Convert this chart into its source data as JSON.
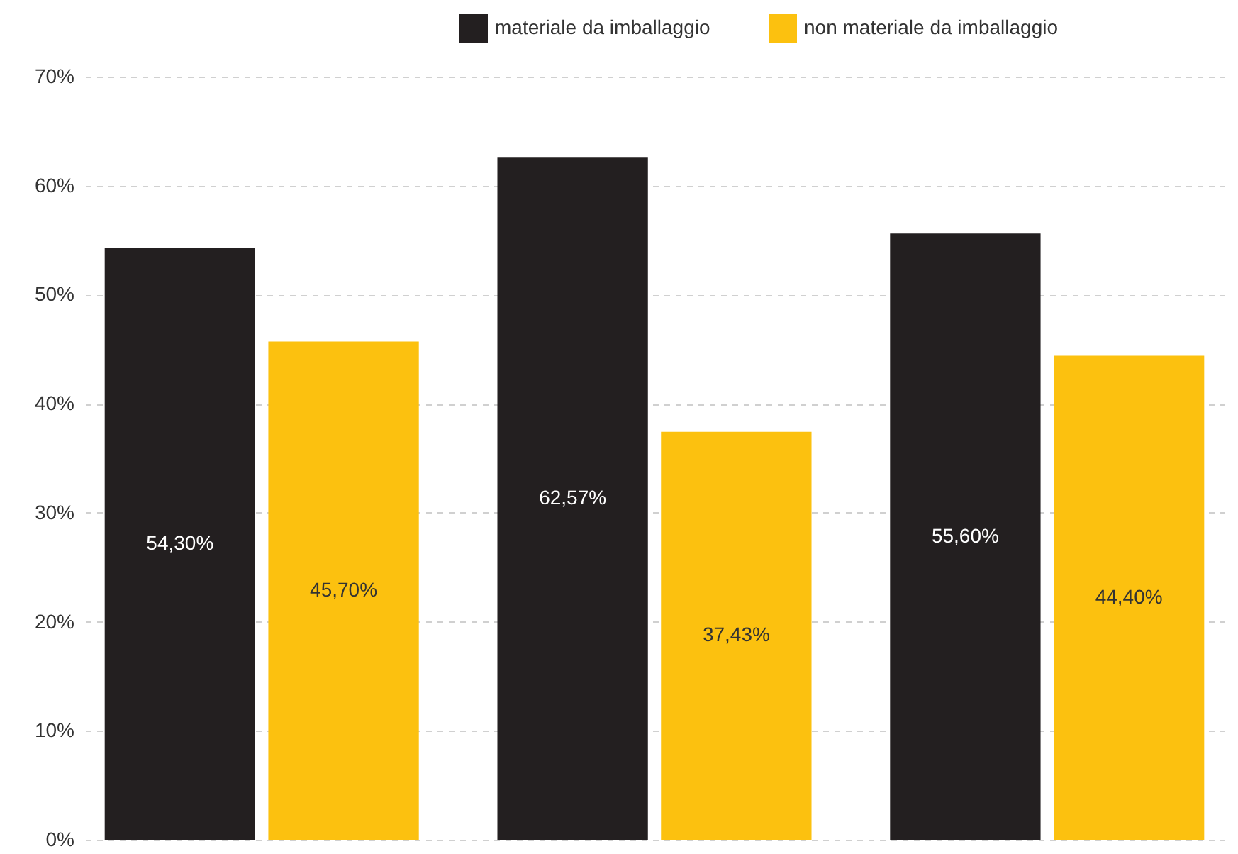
{
  "chart_data": {
    "type": "bar",
    "categories": [
      null,
      null,
      null
    ],
    "series": [
      {
        "name": "materiale da imballaggio",
        "color": "#231f20",
        "values": [
          54.3,
          62.57,
          55.6
        ],
        "value_labels": [
          "54,30%",
          "62,57%",
          "55,60%"
        ]
      },
      {
        "name": "non materiale da imballaggio",
        "color": "#fcc10f",
        "values": [
          45.7,
          37.43,
          44.4
        ],
        "value_labels": [
          "45,70%",
          "37,43%",
          "44,40%"
        ]
      }
    ],
    "ylim": [
      0,
      70
    ],
    "yticks": [
      {
        "value": 0,
        "label": "0%"
      },
      {
        "value": 10,
        "label": "10%"
      },
      {
        "value": 20,
        "label": "20%"
      },
      {
        "value": 30,
        "label": "30%"
      },
      {
        "value": 40,
        "label": "40%"
      },
      {
        "value": 50,
        "label": "50%"
      },
      {
        "value": 60,
        "label": "60%"
      },
      {
        "value": 70,
        "label": "70%"
      }
    ],
    "grid": "y",
    "legend": "top right"
  }
}
